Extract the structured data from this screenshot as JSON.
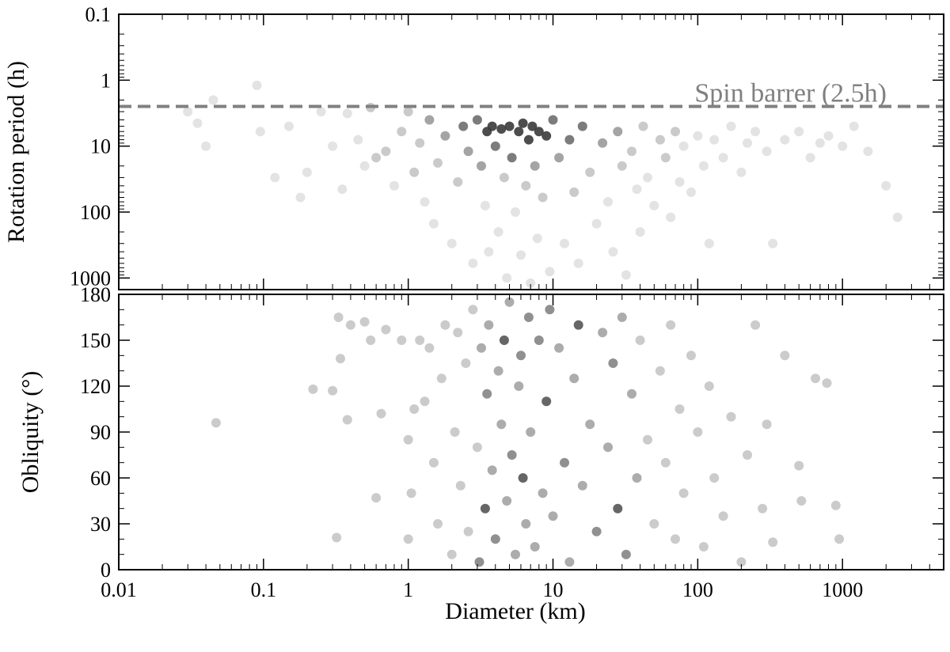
{
  "chart_data": [
    {
      "type": "scatter",
      "xlabel": "Diameter (km)",
      "ylabel": "Rotation period (h)",
      "x_scale": "log",
      "y_scale": "log",
      "y_inverted": true,
      "xlim": [
        0.01,
        5000
      ],
      "ylim": [
        0.1,
        1500
      ],
      "x_ticks": [
        0.01,
        0.1,
        1,
        10,
        100,
        1000
      ],
      "x_tick_labels": [
        "0.01",
        "0.1",
        "1",
        "10",
        "100",
        "1000"
      ],
      "y_ticks": [
        0.1,
        1,
        10,
        100,
        1000
      ],
      "y_tick_labels": [
        "0.1",
        "1",
        "10",
        "100",
        "1000"
      ],
      "grid": false,
      "marker_color": "#b0b0b0",
      "density_colors": [
        "#e0e0e0",
        "#c4c4c4",
        "#9a9a9a",
        "#6e6e6e",
        "#3a3a3a"
      ],
      "reference_line": {
        "y": 2.5,
        "label": "Spin barrer (2.5h)",
        "style": "dashed",
        "color": "#808080"
      },
      "points": [
        [
          0.03,
          3
        ],
        [
          0.035,
          4.5
        ],
        [
          0.045,
          2
        ],
        [
          0.04,
          10
        ],
        [
          0.09,
          1.2
        ],
        [
          0.095,
          6
        ],
        [
          0.12,
          30
        ],
        [
          0.15,
          5
        ],
        [
          0.18,
          60
        ],
        [
          0.2,
          25
        ],
        [
          0.25,
          3
        ],
        [
          0.3,
          10
        ],
        [
          0.35,
          45
        ],
        [
          0.38,
          3.2
        ],
        [
          0.45,
          8
        ],
        [
          0.5,
          20
        ],
        [
          0.55,
          2.6
        ],
        [
          0.6,
          15
        ],
        [
          0.7,
          12
        ],
        [
          0.8,
          40
        ],
        [
          0.9,
          6
        ],
        [
          1.0,
          3
        ],
        [
          1.1,
          25
        ],
        [
          1.2,
          9
        ],
        [
          1.3,
          70
        ],
        [
          1.4,
          4
        ],
        [
          1.5,
          150
        ],
        [
          1.6,
          18
        ],
        [
          1.8,
          7
        ],
        [
          2.0,
          300
        ],
        [
          2.2,
          35
        ],
        [
          2.4,
          5
        ],
        [
          2.6,
          12
        ],
        [
          2.8,
          600
        ],
        [
          3.0,
          4
        ],
        [
          3.2,
          20
        ],
        [
          3.4,
          80
        ],
        [
          3.5,
          6
        ],
        [
          3.6,
          400
        ],
        [
          3.8,
          5
        ],
        [
          4.0,
          10
        ],
        [
          4.2,
          200
        ],
        [
          4.4,
          5.5
        ],
        [
          4.6,
          30
        ],
        [
          4.8,
          1000
        ],
        [
          5.0,
          5
        ],
        [
          5.2,
          15
        ],
        [
          5.5,
          100
        ],
        [
          5.8,
          6
        ],
        [
          6.0,
          450
        ],
        [
          6.2,
          4.5
        ],
        [
          6.5,
          40
        ],
        [
          6.8,
          8
        ],
        [
          7.0,
          1200
        ],
        [
          7.2,
          5
        ],
        [
          7.5,
          20
        ],
        [
          7.8,
          250
        ],
        [
          8.0,
          6
        ],
        [
          8.5,
          60
        ],
        [
          9.0,
          7
        ],
        [
          9.5,
          800
        ],
        [
          10,
          4
        ],
        [
          11,
          15
        ],
        [
          12,
          300
        ],
        [
          13,
          8
        ],
        [
          14,
          50
        ],
        [
          15,
          600
        ],
        [
          16,
          5
        ],
        [
          18,
          25
        ],
        [
          20,
          150
        ],
        [
          22,
          9
        ],
        [
          24,
          70
        ],
        [
          26,
          400
        ],
        [
          28,
          6
        ],
        [
          30,
          20
        ],
        [
          32,
          900
        ],
        [
          35,
          12
        ],
        [
          38,
          45
        ],
        [
          40,
          200
        ],
        [
          42,
          5
        ],
        [
          45,
          30
        ],
        [
          50,
          80
        ],
        [
          55,
          8
        ],
        [
          60,
          15
        ],
        [
          65,
          120
        ],
        [
          70,
          6
        ],
        [
          75,
          35
        ],
        [
          80,
          10
        ],
        [
          90,
          50
        ],
        [
          100,
          7
        ],
        [
          110,
          20
        ],
        [
          120,
          300
        ],
        [
          130,
          8
        ],
        [
          150,
          15
        ],
        [
          170,
          5
        ],
        [
          200,
          25
        ],
        [
          220,
          9
        ],
        [
          250,
          6
        ],
        [
          300,
          12
        ],
        [
          330,
          300
        ],
        [
          400,
          8
        ],
        [
          500,
          6
        ],
        [
          600,
          15
        ],
        [
          700,
          9
        ],
        [
          800,
          7
        ],
        [
          1000,
          10
        ],
        [
          1200,
          5
        ],
        [
          1500,
          12
        ],
        [
          2000,
          40
        ],
        [
          2400,
          120
        ]
      ]
    },
    {
      "type": "scatter",
      "xlabel": "Diameter (km)",
      "ylabel": "Obliquity (°)",
      "x_scale": "log",
      "y_scale": "linear",
      "xlim": [
        0.01,
        5000
      ],
      "ylim": [
        0,
        180
      ],
      "x_ticks": [
        0.01,
        0.1,
        1,
        10,
        100,
        1000
      ],
      "x_tick_labels": [
        "0.01",
        "0.1",
        "1",
        "10",
        "100",
        "1000"
      ],
      "y_ticks": [
        0,
        30,
        60,
        90,
        120,
        150,
        180
      ],
      "y_tick_labels": [
        "0",
        "30",
        "60",
        "90",
        "120",
        "150",
        "180"
      ],
      "grid": false,
      "marker_color": "#b0b0b0",
      "density_colors": [
        "#c8c8c8",
        "#a8a8a8",
        "#8a8a8a",
        "#5e5e5e"
      ],
      "points": [
        [
          0.047,
          96
        ],
        [
          0.22,
          118
        ],
        [
          0.3,
          117
        ],
        [
          0.32,
          21
        ],
        [
          0.33,
          165
        ],
        [
          0.34,
          138
        ],
        [
          0.38,
          98
        ],
        [
          0.4,
          160
        ],
        [
          0.5,
          162
        ],
        [
          0.55,
          150
        ],
        [
          0.6,
          47
        ],
        [
          0.65,
          102
        ],
        [
          0.7,
          157
        ],
        [
          0.9,
          150
        ],
        [
          1.0,
          85
        ],
        [
          1.0,
          20
        ],
        [
          1.05,
          50
        ],
        [
          1.1,
          105
        ],
        [
          1.2,
          150
        ],
        [
          1.3,
          110
        ],
        [
          1.4,
          145
        ],
        [
          1.5,
          70
        ],
        [
          1.6,
          30
        ],
        [
          1.7,
          125
        ],
        [
          1.8,
          160
        ],
        [
          2.0,
          10
        ],
        [
          2.1,
          90
        ],
        [
          2.2,
          155
        ],
        [
          2.3,
          55
        ],
        [
          2.5,
          135
        ],
        [
          2.6,
          25
        ],
        [
          2.8,
          170
        ],
        [
          3.0,
          80
        ],
        [
          3.1,
          5
        ],
        [
          3.2,
          145
        ],
        [
          3.4,
          40
        ],
        [
          3.5,
          115
        ],
        [
          3.6,
          160
        ],
        [
          3.8,
          65
        ],
        [
          4.0,
          20
        ],
        [
          4.2,
          130
        ],
        [
          4.4,
          95
        ],
        [
          4.6,
          150
        ],
        [
          4.8,
          45
        ],
        [
          5.0,
          175
        ],
        [
          5.2,
          75
        ],
        [
          5.5,
          10
        ],
        [
          5.8,
          120
        ],
        [
          6.0,
          140
        ],
        [
          6.2,
          60
        ],
        [
          6.5,
          30
        ],
        [
          6.8,
          165
        ],
        [
          7.0,
          90
        ],
        [
          7.5,
          15
        ],
        [
          8.0,
          150
        ],
        [
          8.5,
          50
        ],
        [
          9.0,
          110
        ],
        [
          9.5,
          170
        ],
        [
          10,
          35
        ],
        [
          11,
          145
        ],
        [
          12,
          70
        ],
        [
          13,
          5
        ],
        [
          14,
          125
        ],
        [
          15,
          160
        ],
        [
          16,
          55
        ],
        [
          18,
          95
        ],
        [
          20,
          25
        ],
        [
          22,
          155
        ],
        [
          24,
          80
        ],
        [
          26,
          135
        ],
        [
          28,
          40
        ],
        [
          30,
          165
        ],
        [
          32,
          10
        ],
        [
          35,
          115
        ],
        [
          38,
          60
        ],
        [
          40,
          150
        ],
        [
          45,
          85
        ],
        [
          50,
          30
        ],
        [
          55,
          130
        ],
        [
          60,
          70
        ],
        [
          65,
          160
        ],
        [
          70,
          20
        ],
        [
          75,
          105
        ],
        [
          80,
          50
        ],
        [
          90,
          140
        ],
        [
          100,
          90
        ],
        [
          110,
          15
        ],
        [
          120,
          120
        ],
        [
          130,
          60
        ],
        [
          150,
          35
        ],
        [
          170,
          100
        ],
        [
          200,
          5
        ],
        [
          220,
          75
        ],
        [
          250,
          160
        ],
        [
          280,
          40
        ],
        [
          300,
          95
        ],
        [
          330,
          18
        ],
        [
          400,
          140
        ],
        [
          500,
          68
        ],
        [
          520,
          45
        ],
        [
          650,
          125
        ],
        [
          780,
          122
        ],
        [
          900,
          42
        ],
        [
          950,
          20
        ]
      ]
    }
  ]
}
